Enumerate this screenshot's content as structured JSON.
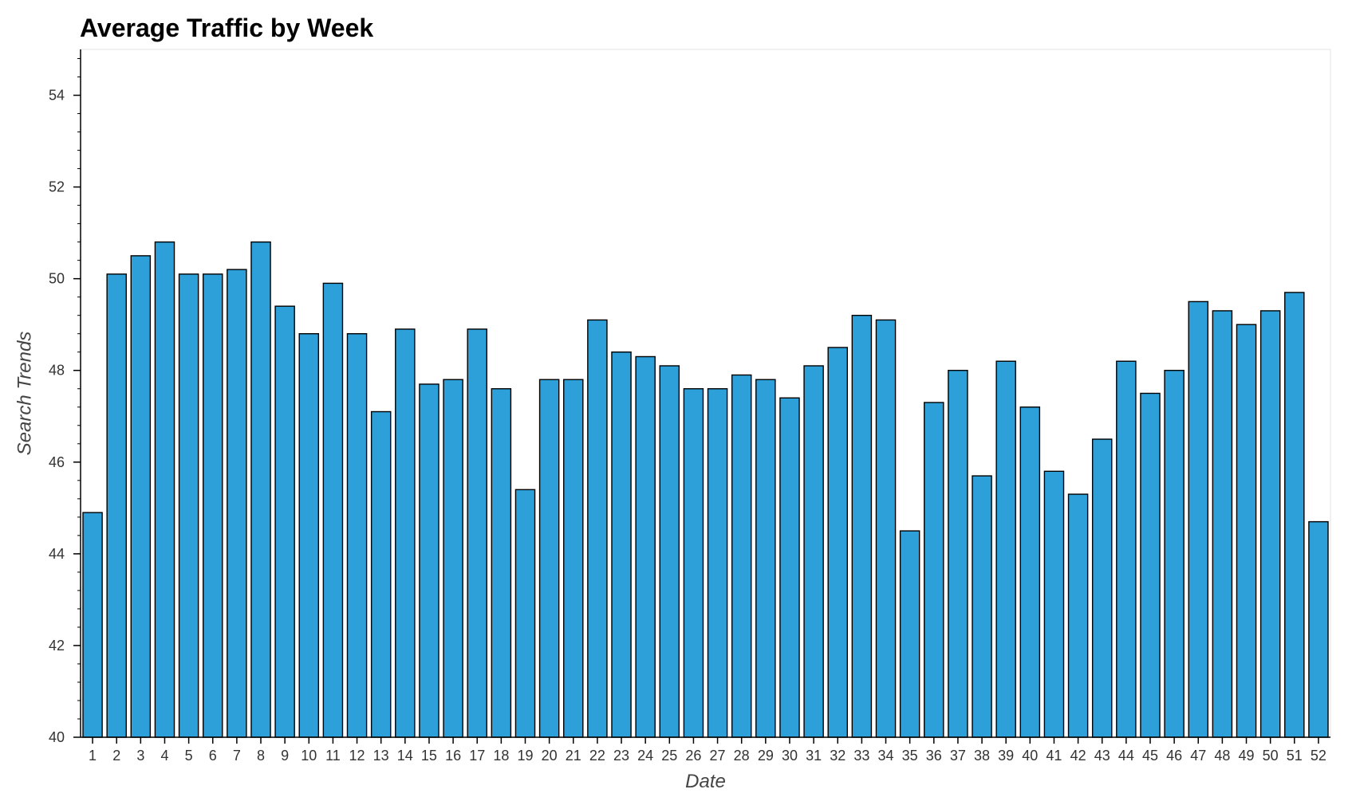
{
  "chart_data": {
    "type": "bar",
    "title": "Average Traffic by Week",
    "xlabel": "Date",
    "ylabel": "Search Trends",
    "ylim": [
      40,
      55
    ],
    "yticks": [
      "40",
      "42",
      "44",
      "46",
      "48",
      "50",
      "52",
      "54"
    ],
    "grid": false,
    "bar_color": "#2ea0d9",
    "bar_edge_color": "#000000",
    "categories": [
      "1",
      "2",
      "3",
      "4",
      "5",
      "6",
      "7",
      "8",
      "9",
      "10",
      "11",
      "12",
      "13",
      "14",
      "15",
      "16",
      "17",
      "18",
      "19",
      "20",
      "21",
      "22",
      "23",
      "24",
      "25",
      "26",
      "27",
      "28",
      "29",
      "30",
      "31",
      "32",
      "33",
      "34",
      "35",
      "36",
      "37",
      "38",
      "39",
      "40",
      "41",
      "42",
      "43",
      "44",
      "45",
      "46",
      "47",
      "48",
      "49",
      "50",
      "51",
      "52"
    ],
    "values": [
      44.9,
      50.1,
      50.5,
      50.8,
      50.1,
      50.1,
      50.2,
      50.8,
      49.4,
      48.8,
      49.9,
      48.8,
      47.1,
      48.9,
      47.7,
      47.8,
      48.9,
      47.6,
      45.4,
      47.8,
      47.8,
      49.1,
      48.4,
      48.3,
      48.1,
      47.6,
      47.6,
      47.9,
      47.8,
      47.4,
      48.1,
      48.5,
      49.2,
      49.1,
      44.5,
      47.3,
      48.0,
      45.7,
      48.2,
      47.2,
      45.8,
      45.3,
      46.5,
      48.2,
      47.5,
      48.0,
      49.5,
      49.3,
      49.0,
      49.3,
      49.7,
      44.7
    ]
  }
}
